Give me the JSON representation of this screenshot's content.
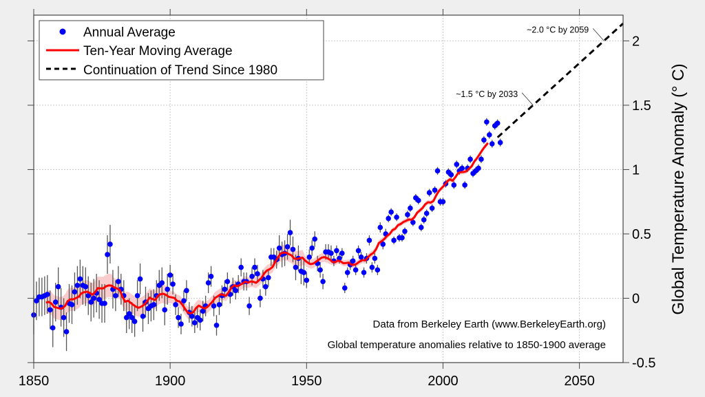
{
  "chart_data": {
    "type": "scatter",
    "xlim": [
      1850,
      2066
    ],
    "ylim": [
      -0.5,
      2.2
    ],
    "x_ticks": [
      "1850",
      "1900",
      "1950",
      "2000",
      "2050"
    ],
    "y_ticks": [
      "-0.5",
      "0",
      "0.5",
      "1",
      "1.5",
      "2"
    ],
    "xlabel": "",
    "ylabel": "Global Temperature Anomaly (° C)",
    "y_axis_side": "right",
    "grid": true,
    "legend_position": "top-left",
    "legend": [
      "Annual Average",
      "Ten-Year Moving Average",
      "Continuation of Trend Since 1980"
    ],
    "colors": {
      "annual": "#0000ff",
      "moving_average": "#ff0000",
      "band": "#f8c4c4",
      "trend": "#000000",
      "error_bar": "#555555",
      "grid": "#c8c8c8"
    },
    "series": [
      {
        "name": "Annual Average",
        "type": "scatter",
        "start_year": 1850,
        "values": [
          -0.13,
          -0.02,
          0.01,
          0.01,
          0.02,
          0.03,
          -0.09,
          -0.23,
          -0.03,
          0.09,
          -0.07,
          -0.15,
          -0.26,
          -0.04,
          -0.05,
          0.05,
          0.1,
          0.15,
          0.1,
          0.09,
          0.02,
          -0.03,
          0.0,
          0.04,
          -0.01,
          -0.04,
          -0.04,
          0.34,
          0.42,
          0.07,
          0.02,
          0.13,
          0.07,
          0.02,
          -0.15,
          -0.12,
          -0.15,
          -0.18,
          0.02,
          0.15,
          -0.14,
          -0.03,
          -0.08,
          -0.06,
          -0.05,
          0.02,
          0.1,
          0.12,
          -0.09,
          0.07,
          0.18,
          0.11,
          -0.05,
          -0.15,
          -0.2,
          -0.02,
          0.06,
          -0.11,
          -0.14,
          -0.19,
          -0.15,
          -0.17,
          -0.1,
          -0.06,
          0.12,
          0.17,
          -0.06,
          -0.21,
          -0.05,
          0.02,
          0.07,
          0.13,
          0.03,
          0.09,
          0.06,
          0.11,
          0.24,
          0.13,
          0.13,
          -0.06,
          0.17,
          0.24,
          0.19,
          0.0,
          0.15,
          0.09,
          0.16,
          0.32,
          0.32,
          0.3,
          0.39,
          0.34,
          0.35,
          0.4,
          0.51,
          0.38,
          0.24,
          0.31,
          0.21,
          0.2,
          0.14,
          0.32,
          0.39,
          0.46,
          0.27,
          0.22,
          0.13,
          0.36,
          0.36,
          0.35,
          0.29,
          0.37,
          0.31,
          0.35,
          0.08,
          0.2,
          0.26,
          0.29,
          0.22,
          0.37,
          0.32,
          0.2,
          0.31,
          0.45,
          0.24,
          0.31,
          0.22,
          0.55,
          0.42,
          0.5,
          0.62,
          0.67,
          0.45,
          0.63,
          0.47,
          0.47,
          0.52,
          0.65,
          0.7,
          0.59,
          0.78,
          0.76,
          0.55,
          0.61,
          0.66,
          0.82,
          0.7,
          0.84,
          0.99,
          0.75,
          0.75,
          0.89,
          0.98,
          0.96,
          0.88,
          1.04,
          0.99,
          1.01,
          0.88,
          1.01,
          1.08,
          0.97,
          0.99,
          1.01,
          1.08,
          1.23,
          1.37,
          1.27,
          1.2,
          1.34,
          1.36,
          1.21
        ],
        "uncertainty": [
          {
            "from": 1850,
            "to": 1879,
            "value": 0.15
          },
          {
            "from": 1880,
            "to": 1899,
            "value": 0.12
          },
          {
            "from": 1900,
            "to": 1919,
            "value": 0.08
          },
          {
            "from": 1920,
            "to": 1939,
            "value": 0.07
          },
          {
            "from": 1940,
            "to": 1949,
            "value": 0.1
          },
          {
            "from": 1950,
            "to": 1959,
            "value": 0.06
          },
          {
            "from": 1960,
            "to": 1979,
            "value": 0.04
          },
          {
            "from": 1980,
            "to": 2021,
            "value": 0.03
          }
        ]
      },
      {
        "name": "Ten-Year Moving Average",
        "type": "line",
        "window_years": 10
      },
      {
        "name": "Continuation of Trend Since 1980",
        "type": "dashed-line",
        "x": [
          2020,
          2066
        ],
        "y": [
          1.25,
          2.135
        ]
      }
    ],
    "annotations": [
      {
        "text": "~2.0 °C by 2059",
        "x": 2059,
        "y": 2.0
      },
      {
        "text": "~1.5 °C by 2033",
        "x": 2033,
        "y": 1.5
      }
    ],
    "notes": [
      "Data from Berkeley Earth (www.BerkeleyEarth.org)",
      "Global temperature anomalies relative to 1850-1900 average"
    ]
  }
}
